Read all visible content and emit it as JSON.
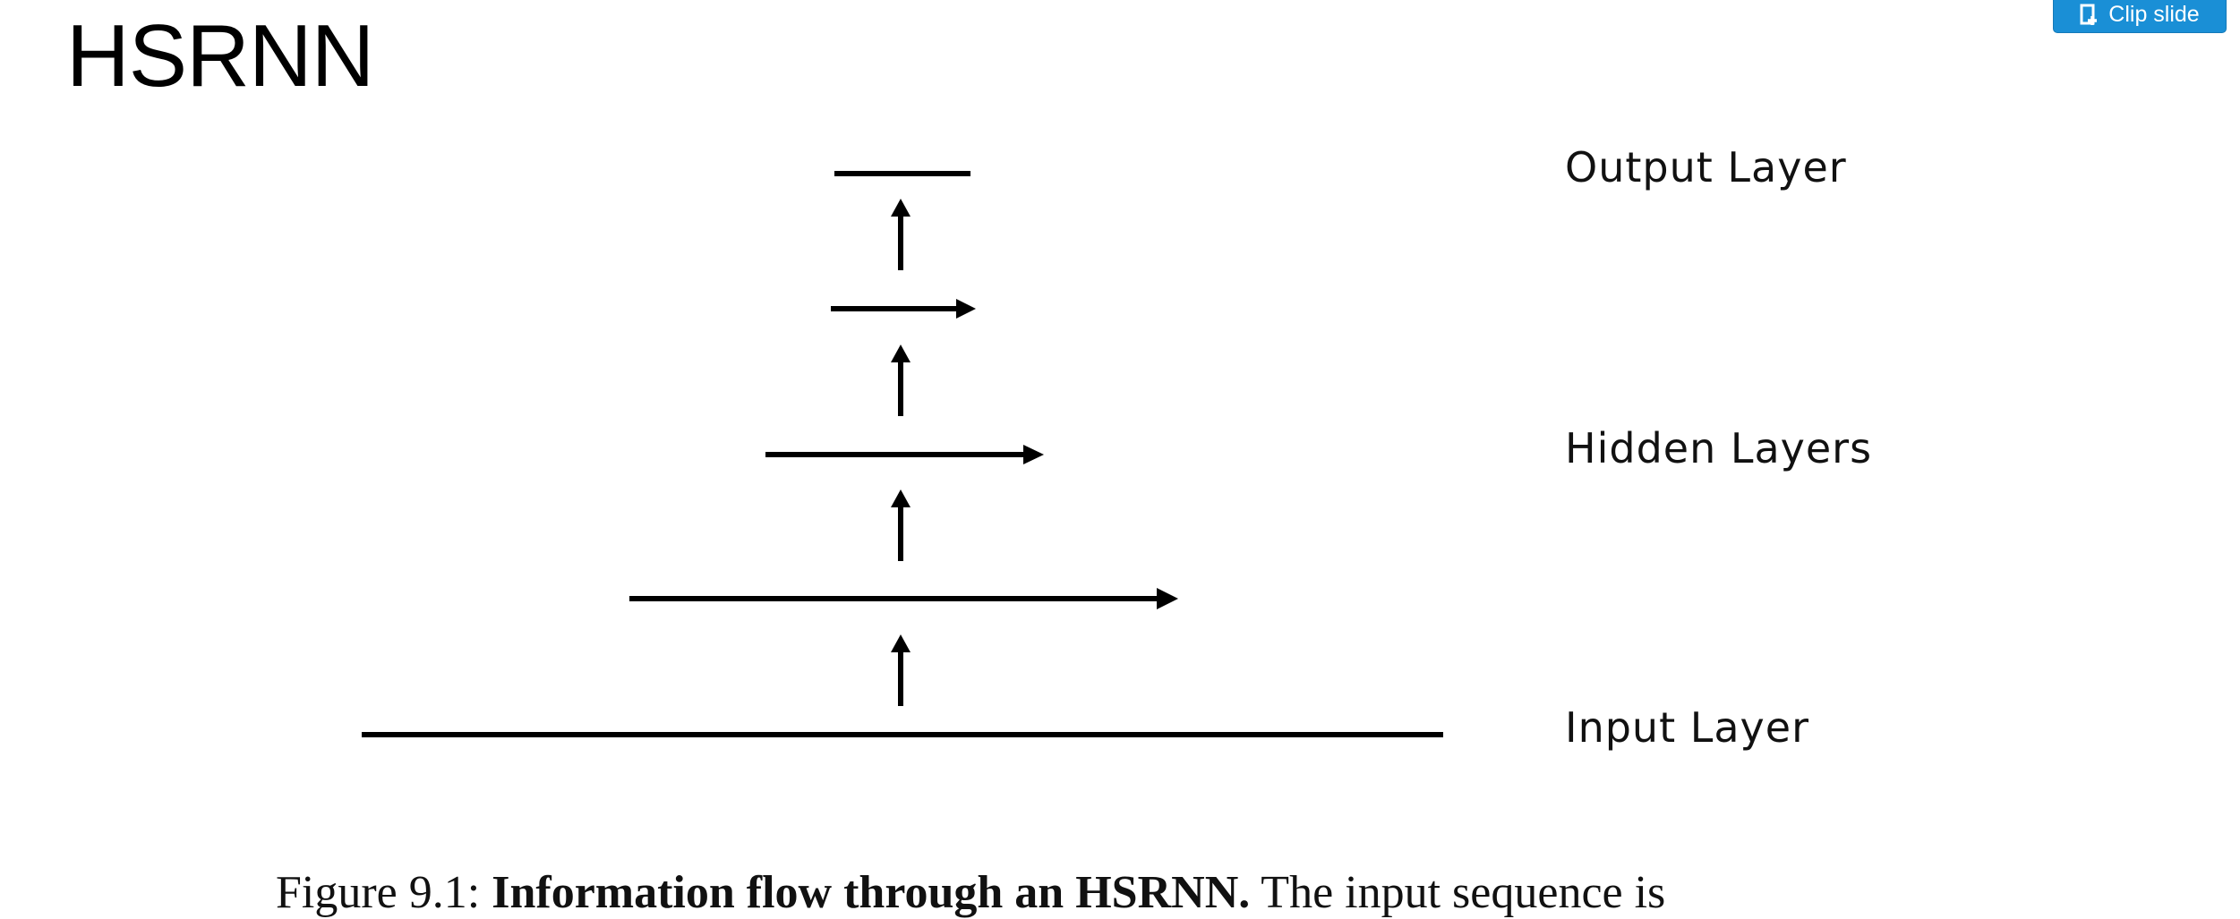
{
  "slide": {
    "title": "HSRNN"
  },
  "toolbar": {
    "clip_label": "Clip slide",
    "clip_icon": "clip-slide-icon",
    "accent_color": "#1a8fd6"
  },
  "diagram": {
    "labels": {
      "output": "Output Layer",
      "hidden": "Hidden Layers",
      "input": "Input Layer"
    }
  },
  "caption": {
    "prefix": "Figure 9.1: ",
    "bold": "Information flow through an HSRNN.",
    "rest": " The input sequence is"
  }
}
